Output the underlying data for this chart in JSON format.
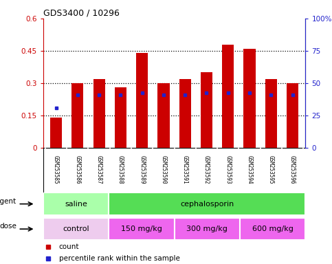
{
  "title": "GDS3400 / 10296",
  "samples": [
    "GSM253585",
    "GSM253586",
    "GSM253587",
    "GSM253588",
    "GSM253589",
    "GSM253590",
    "GSM253591",
    "GSM253592",
    "GSM253593",
    "GSM253594",
    "GSM253595",
    "GSM253596"
  ],
  "count_values": [
    0.14,
    0.3,
    0.32,
    0.28,
    0.44,
    0.3,
    0.32,
    0.35,
    0.48,
    0.46,
    0.32,
    0.3
  ],
  "percentile_values": [
    0.185,
    0.245,
    0.245,
    0.245,
    0.255,
    0.245,
    0.245,
    0.255,
    0.255,
    0.255,
    0.245,
    0.245
  ],
  "ylim": [
    0,
    0.6
  ],
  "yticks": [
    0,
    0.15,
    0.3,
    0.45,
    0.6
  ],
  "ytick_labels": [
    "0",
    "0.15",
    "0.3",
    "0.45",
    "0.6"
  ],
  "right_ytick_labels": [
    "0",
    "25",
    "50",
    "75",
    "100%"
  ],
  "bar_color": "#cc0000",
  "percentile_color": "#2222cc",
  "agent_groups": [
    {
      "label": "saline",
      "start": 0,
      "end": 3,
      "color": "#aaffaa"
    },
    {
      "label": "cephalosporin",
      "start": 3,
      "end": 12,
      "color": "#55dd55"
    }
  ],
  "dose_groups": [
    {
      "label": "control",
      "start": 0,
      "end": 3,
      "color": "#eeccee"
    },
    {
      "label": "150 mg/kg",
      "start": 3,
      "end": 6,
      "color": "#ee66ee"
    },
    {
      "label": "300 mg/kg",
      "start": 6,
      "end": 9,
      "color": "#ee66ee"
    },
    {
      "label": "600 mg/kg",
      "start": 9,
      "end": 12,
      "color": "#ee66ee"
    }
  ],
  "legend_count_label": "count",
  "legend_percentile_label": "percentile rank within the sample",
  "bg_color": "#ffffff",
  "tick_area_color": "#c8c8c8",
  "figsize": [
    4.83,
    3.84
  ],
  "dpi": 100
}
